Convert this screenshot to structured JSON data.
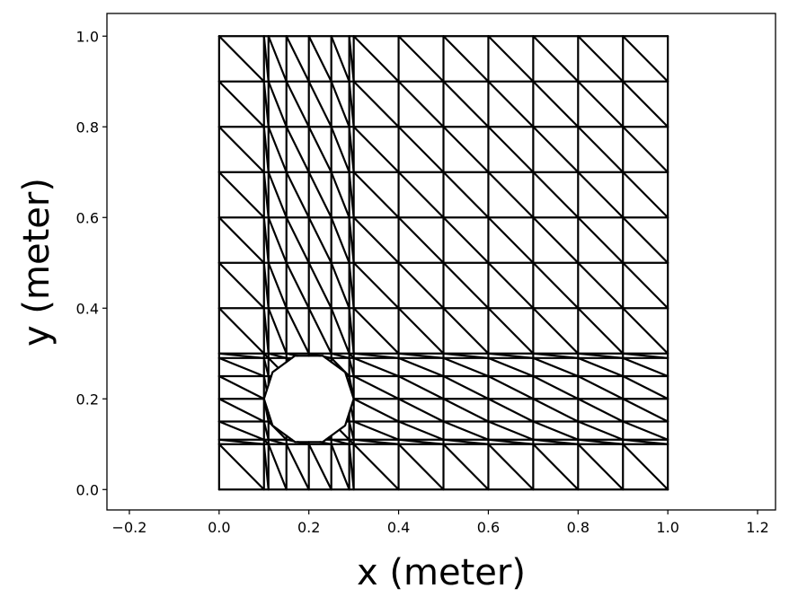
{
  "chart_data": {
    "type": "mesh",
    "title": "",
    "xlabel": "x (meter)",
    "ylabel": "y (meter)",
    "xlim": [
      -0.25,
      1.24
    ],
    "ylim": [
      -0.045,
      1.05
    ],
    "grid": false,
    "legend": "none",
    "line_color": "#000000",
    "xticks": [
      -0.2,
      0.0,
      0.2,
      0.4,
      0.6,
      0.8,
      1.0,
      1.2
    ],
    "xtick_labels": [
      "−0.2",
      "0.0",
      "0.2",
      "0.4",
      "0.6",
      "0.8",
      "1.0",
      "1.2"
    ],
    "yticks": [
      0.0,
      0.2,
      0.4,
      0.6,
      0.8,
      1.0
    ],
    "ytick_labels": [
      "0.0",
      "0.2",
      "0.4",
      "0.6",
      "0.8",
      "1.0"
    ],
    "mesh": {
      "x_nodes": [
        0.0,
        0.1,
        0.11,
        0.15,
        0.2,
        0.25,
        0.29,
        0.3,
        0.4,
        0.5,
        0.6,
        0.7,
        0.8,
        0.9,
        1.0
      ],
      "y_nodes": [
        0.0,
        0.1,
        0.11,
        0.15,
        0.2,
        0.25,
        0.29,
        0.3,
        0.4,
        0.5,
        0.6,
        0.7,
        0.8,
        0.9,
        1.0
      ],
      "hole": {
        "center": [
          0.2,
          0.2
        ],
        "radius": 0.1,
        "sides": 10
      },
      "diagonal": "top-left to bottom-right"
    }
  }
}
